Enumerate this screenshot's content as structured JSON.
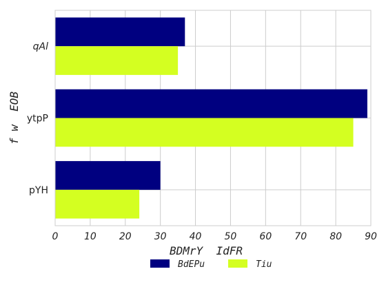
{
  "chart_data": {
    "type": "bar",
    "orientation": "horizontal",
    "title": "",
    "xlabel": "BDMrY  IdFR",
    "ylabel": "f w  EOB",
    "categories": [
      "qAl",
      "ytpP",
      "pYH"
    ],
    "series": [
      {
        "name": "BdEPu",
        "values": [
          37,
          89,
          30
        ],
        "color": "#000080"
      },
      {
        "name": "Tiu",
        "values": [
          35,
          85,
          24
        ],
        "color": "#d4ff21"
      }
    ],
    "xlim": [
      0,
      90
    ],
    "xticks": [
      "0",
      "10",
      "20",
      "30",
      "40",
      "50",
      "60",
      "70",
      "80",
      "90"
    ],
    "grid": true,
    "legend_position": "bottom-center"
  }
}
